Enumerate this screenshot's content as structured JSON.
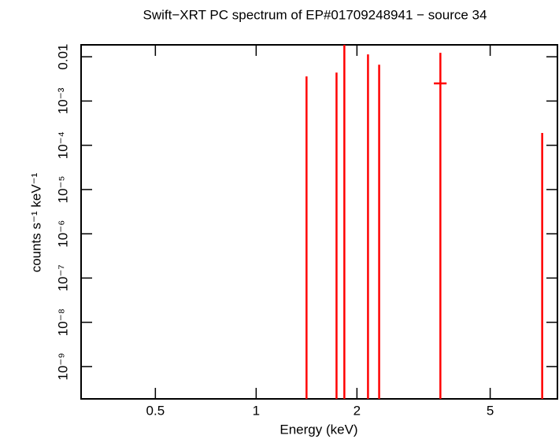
{
  "chart_data": {
    "type": "errorbar",
    "title": "Swift−XRT PC spectrum of EP#01709248941 − source 34",
    "xlabel": "Energy (keV)",
    "ylabel": "counts s⁻¹ keV⁻¹",
    "x_log": true,
    "y_log": true,
    "xlim": [
      0.3,
      7.94
    ],
    "ylim": [
      1.86e-10,
      0.0186
    ],
    "xticks": [
      0.5,
      1,
      2,
      5
    ],
    "yticks": [
      {
        "value": 0.01,
        "label": "0.01"
      },
      {
        "value": 0.001,
        "label": "10⁻³"
      },
      {
        "value": 0.0001,
        "label": "10⁻⁴"
      },
      {
        "value": 1e-05,
        "label": "10⁻⁵"
      },
      {
        "value": 1e-06,
        "label": "10⁻⁶"
      },
      {
        "value": 1e-07,
        "label": "10⁻⁷"
      },
      {
        "value": 1e-08,
        "label": "10⁻⁸"
      },
      {
        "value": 1e-09,
        "label": "10⁻⁹"
      }
    ],
    "color": "#ff0000",
    "x": [
      1.414,
      1.738,
      1.834,
      2.158,
      2.33,
      3.55,
      7.15
    ],
    "xerr": [
      0.004,
      0.004,
      0.004,
      0.004,
      0.004,
      0.155,
      0.008
    ],
    "values": [
      0,
      0,
      0,
      0,
      0,
      0.0025,
      0
    ],
    "errors": [
      0.0036,
      0.0044,
      0.02,
      0.0113,
      0.0066,
      0.0098,
      0.00019
    ]
  }
}
